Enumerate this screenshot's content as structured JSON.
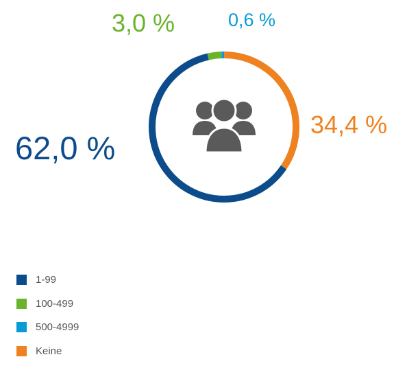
{
  "chart_data": {
    "type": "pie",
    "categories": [
      "1-99",
      "100-499",
      "500-4999",
      "Keine"
    ],
    "values": [
      62.0,
      3.0,
      0.6,
      34.4
    ],
    "value_labels": [
      "62,0 %",
      "3,0 %",
      "0,6 %",
      "34,4 %"
    ],
    "colors": [
      "#0d4c8b",
      "#6ab42d",
      "#0a9bd6",
      "#ef8220"
    ],
    "style": "donut",
    "center_icon": "users-group-icon",
    "icon_color": "#5a5a5a",
    "legend_position": "bottom-left",
    "title": "",
    "xlabel": "",
    "ylabel": ""
  }
}
